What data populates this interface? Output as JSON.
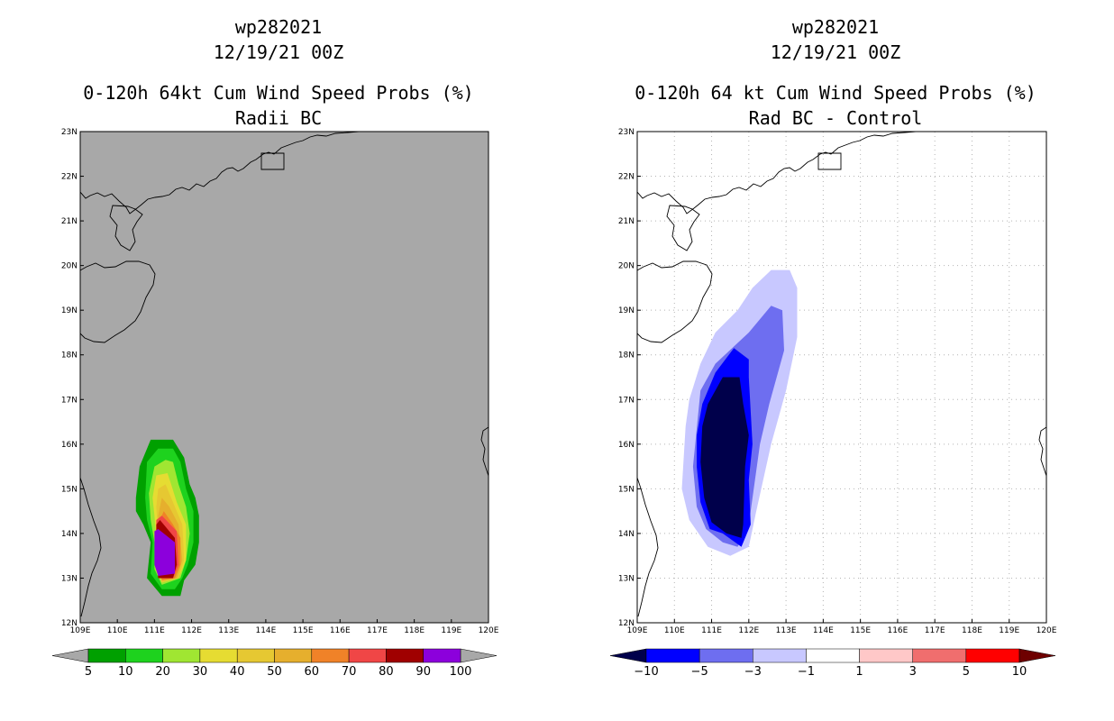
{
  "left_panel": {
    "title1": "wp282021",
    "title2": "12/19/21 00Z",
    "title3": "0-120h 64kt Cum Wind Speed Probs (%)",
    "title4": "Radii BC"
  },
  "right_panel": {
    "title1": "wp282021",
    "title2": "12/19/21 00Z",
    "title3": "0-120h 64 kt Cum Wind Speed Probs (%)",
    "title4": "Rad BC - Control"
  },
  "chart_data": [
    {
      "type": "heatmap",
      "title": "0-120h 64kt Cum Wind Speed Probs (%) — Radii BC",
      "x_ticks": [
        "109E",
        "110E",
        "111E",
        "112E",
        "113E",
        "114E",
        "115E",
        "116E",
        "117E",
        "118E",
        "119E",
        "120E"
      ],
      "y_ticks": [
        "12N",
        "13N",
        "14N",
        "15N",
        "16N",
        "17N",
        "18N",
        "19N",
        "20N",
        "21N",
        "22N",
        "23N"
      ],
      "xlim": [
        109,
        120
      ],
      "ylim": [
        12,
        23
      ],
      "background_color": "#a8a8a8",
      "colorbar": {
        "labels": [
          "5",
          "10",
          "20",
          "30",
          "40",
          "50",
          "60",
          "70",
          "80",
          "90",
          "100"
        ],
        "colors": [
          "#00a000",
          "#1ed21e",
          "#a0e632",
          "#e6dc32",
          "#e6c832",
          "#e6af2d",
          "#f08228",
          "#f04646",
          "#a00000",
          "#8c00dc"
        ]
      },
      "contours": [
        {
          "threshold": 5,
          "points": [
            [
              110.5,
              14.8
            ],
            [
              110.6,
              15.5
            ],
            [
              110.9,
              16.1
            ],
            [
              111.5,
              16.1
            ],
            [
              111.8,
              15.7
            ],
            [
              111.95,
              15.1
            ],
            [
              112.1,
              14.8
            ],
            [
              112.2,
              14.4
            ],
            [
              112.2,
              13.8
            ],
            [
              112.1,
              13.3
            ],
            [
              111.8,
              12.95
            ],
            [
              111.7,
              12.6
            ],
            [
              111.2,
              12.6
            ],
            [
              110.8,
              13.0
            ],
            [
              110.9,
              13.8
            ],
            [
              110.7,
              14.2
            ],
            [
              110.5,
              14.5
            ]
          ]
        },
        {
          "threshold": 10,
          "points": [
            [
              110.75,
              14.8
            ],
            [
              110.8,
              15.6
            ],
            [
              111.1,
              15.9
            ],
            [
              111.5,
              15.9
            ],
            [
              111.7,
              15.6
            ],
            [
              111.85,
              15.0
            ],
            [
              112.05,
              14.5
            ],
            [
              112.05,
              13.8
            ],
            [
              111.9,
              13.3
            ],
            [
              111.75,
              13.0
            ],
            [
              111.55,
              12.75
            ],
            [
              111.2,
              12.75
            ],
            [
              110.9,
              13.1
            ],
            [
              110.95,
              13.8
            ],
            [
              110.8,
              14.3
            ]
          ]
        },
        {
          "threshold": 20,
          "points": [
            [
              110.85,
              14.9
            ],
            [
              111.0,
              15.5
            ],
            [
              111.3,
              15.65
            ],
            [
              111.5,
              15.6
            ],
            [
              111.65,
              15.1
            ],
            [
              111.85,
              14.6
            ],
            [
              111.95,
              14.0
            ],
            [
              111.85,
              13.4
            ],
            [
              111.7,
              13.0
            ],
            [
              111.2,
              12.85
            ],
            [
              111.0,
              13.2
            ],
            [
              111.0,
              13.8
            ],
            [
              110.9,
              14.3
            ]
          ]
        },
        {
          "threshold": 30,
          "points": [
            [
              110.95,
              14.8
            ],
            [
              111.05,
              15.3
            ],
            [
              111.35,
              15.35
            ],
            [
              111.45,
              15.1
            ],
            [
              111.6,
              14.7
            ],
            [
              111.85,
              14.2
            ],
            [
              111.85,
              13.4
            ],
            [
              111.65,
              13.0
            ],
            [
              111.2,
              12.9
            ],
            [
              111.05,
              13.2
            ],
            [
              111.05,
              13.8
            ],
            [
              111.0,
              14.4
            ]
          ]
        },
        {
          "threshold": 40,
          "points": [
            [
              111.05,
              14.6
            ],
            [
              111.1,
              15.0
            ],
            [
              111.3,
              15.1
            ],
            [
              111.55,
              14.6
            ],
            [
              111.75,
              14.2
            ],
            [
              111.8,
              13.4
            ],
            [
              111.65,
              13.0
            ],
            [
              111.2,
              12.9
            ],
            [
              111.1,
              13.2
            ],
            [
              111.1,
              13.9
            ]
          ]
        },
        {
          "threshold": 50,
          "points": [
            [
              111.1,
              14.4
            ],
            [
              111.2,
              14.8
            ],
            [
              111.4,
              14.6
            ],
            [
              111.65,
              14.2
            ],
            [
              111.75,
              13.4
            ],
            [
              111.6,
              13.0
            ],
            [
              111.2,
              12.95
            ],
            [
              111.1,
              13.3
            ],
            [
              111.1,
              13.9
            ]
          ]
        },
        {
          "threshold": 60,
          "points": [
            [
              111.1,
              14.2
            ],
            [
              111.25,
              14.5
            ],
            [
              111.5,
              14.2
            ],
            [
              111.7,
              13.9
            ],
            [
              111.7,
              13.3
            ],
            [
              111.55,
              13.0
            ],
            [
              111.2,
              12.95
            ],
            [
              111.1,
              13.3
            ]
          ]
        },
        {
          "threshold": 70,
          "points": [
            [
              111.05,
              14.3
            ],
            [
              111.2,
              14.4
            ],
            [
              111.6,
              14.05
            ],
            [
              111.65,
              13.3
            ],
            [
              111.5,
              13.0
            ],
            [
              111.15,
              13.0
            ],
            [
              111.05,
              13.4
            ]
          ]
        },
        {
          "threshold": 80,
          "points": [
            [
              111.05,
              14.2
            ],
            [
              111.15,
              14.3
            ],
            [
              111.55,
              13.9
            ],
            [
              111.6,
              13.3
            ],
            [
              111.5,
              13.0
            ],
            [
              111.1,
              13.0
            ],
            [
              111.05,
              13.4
            ]
          ]
        },
        {
          "threshold": 90,
          "points": [
            [
              111.0,
              14.05
            ],
            [
              111.1,
              14.1
            ],
            [
              111.55,
              13.8
            ],
            [
              111.55,
              13.1
            ],
            [
              111.1,
              13.05
            ],
            [
              111.0,
              13.3
            ]
          ]
        }
      ]
    },
    {
      "type": "heatmap",
      "title": "0-120h 64 kt Cum Wind Speed Probs (%) — Rad BC - Control",
      "x_ticks": [
        "109E",
        "110E",
        "111E",
        "112E",
        "113E",
        "114E",
        "115E",
        "116E",
        "117E",
        "118E",
        "119E",
        "120E"
      ],
      "y_ticks": [
        "12N",
        "13N",
        "14N",
        "15N",
        "16N",
        "17N",
        "18N",
        "19N",
        "20N",
        "21N",
        "22N",
        "23N"
      ],
      "xlim": [
        109,
        120
      ],
      "ylim": [
        12,
        23
      ],
      "background_color": "#ffffff",
      "colorbar": {
        "labels": [
          "-10",
          "-5",
          "-3",
          "-1",
          "1",
          "3",
          "5",
          "10"
        ],
        "colors": [
          "#00004b",
          "#0000ff",
          "#6e6ef0",
          "#c8c8ff",
          "#ffffff",
          "#ffc8c8",
          "#f06e6e",
          "#ff0000",
          "#6e0000"
        ]
      },
      "contours": [
        {
          "threshold": -1,
          "points": [
            [
              110.3,
              16.4
            ],
            [
              110.2,
              15.0
            ],
            [
              110.4,
              14.3
            ],
            [
              110.9,
              13.7
            ],
            [
              111.5,
              13.5
            ],
            [
              112.0,
              13.7
            ],
            [
              112.2,
              14.5
            ],
            [
              112.6,
              16.0
            ],
            [
              113.0,
              17.2
            ],
            [
              113.3,
              18.4
            ],
            [
              113.3,
              19.5
            ],
            [
              113.1,
              19.9
            ],
            [
              112.6,
              19.9
            ],
            [
              112.1,
              19.5
            ],
            [
              111.7,
              19.0
            ],
            [
              111.1,
              18.5
            ],
            [
              110.7,
              17.8
            ],
            [
              110.4,
              17.0
            ]
          ]
        },
        {
          "threshold": -3,
          "points": [
            [
              110.5,
              15.5
            ],
            [
              110.6,
              14.6
            ],
            [
              110.85,
              14.1
            ],
            [
              111.3,
              13.8
            ],
            [
              111.7,
              13.7
            ],
            [
              112.0,
              14.2
            ],
            [
              112.3,
              16.0
            ],
            [
              112.55,
              16.9
            ],
            [
              112.95,
              18.1
            ],
            [
              112.9,
              19.0
            ],
            [
              112.6,
              19.1
            ],
            [
              112.0,
              18.5
            ],
            [
              111.1,
              17.8
            ],
            [
              110.7,
              17.2
            ]
          ]
        },
        {
          "threshold": -5,
          "points": [
            [
              110.6,
              15.5
            ],
            [
              110.7,
              14.7
            ],
            [
              110.95,
              14.1
            ],
            [
              111.3,
              14.0
            ],
            [
              111.8,
              13.7
            ],
            [
              112.05,
              14.2
            ],
            [
              112.0,
              15.2
            ],
            [
              112.1,
              16.0
            ],
            [
              112.0,
              17.5
            ],
            [
              112.0,
              17.9
            ],
            [
              111.6,
              18.15
            ],
            [
              111.1,
              17.6
            ],
            [
              110.75,
              16.9
            ],
            [
              110.6,
              16.2
            ]
          ]
        },
        {
          "threshold": -10,
          "points": [
            [
              110.7,
              15.6
            ],
            [
              110.8,
              14.8
            ],
            [
              111.0,
              14.25
            ],
            [
              111.4,
              14.0
            ],
            [
              111.8,
              13.9
            ],
            [
              111.85,
              14.2
            ],
            [
              111.9,
              15.5
            ],
            [
              112.0,
              16.2
            ],
            [
              111.85,
              16.9
            ],
            [
              111.75,
              17.5
            ],
            [
              111.3,
              17.5
            ],
            [
              110.9,
              16.9
            ],
            [
              110.75,
              16.4
            ]
          ]
        }
      ]
    }
  ]
}
